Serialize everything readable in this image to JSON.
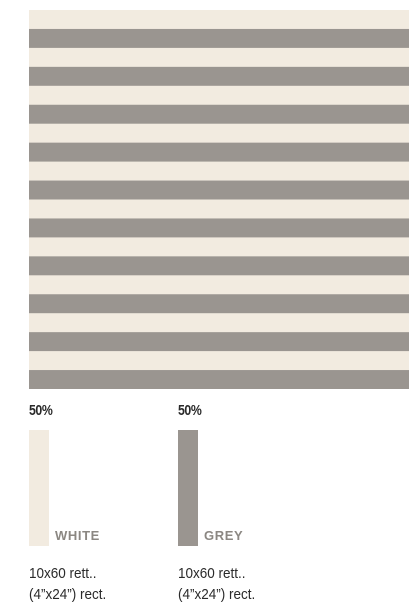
{
  "pattern": {
    "colors": {
      "white": "#f2ebe0",
      "grey": "#9a9590"
    },
    "stripe_count": 20
  },
  "tiles": [
    {
      "percent": "50%",
      "color_name": "WHITE",
      "color": "#f2ebe0",
      "size_line1": "10x60 rett..",
      "size_line2": "(4”x24”) rect."
    },
    {
      "percent": "50%",
      "color_name": "GREY",
      "color": "#9a9590",
      "size_line1": "10x60 rett..",
      "size_line2": "(4”x24”) rect."
    }
  ]
}
